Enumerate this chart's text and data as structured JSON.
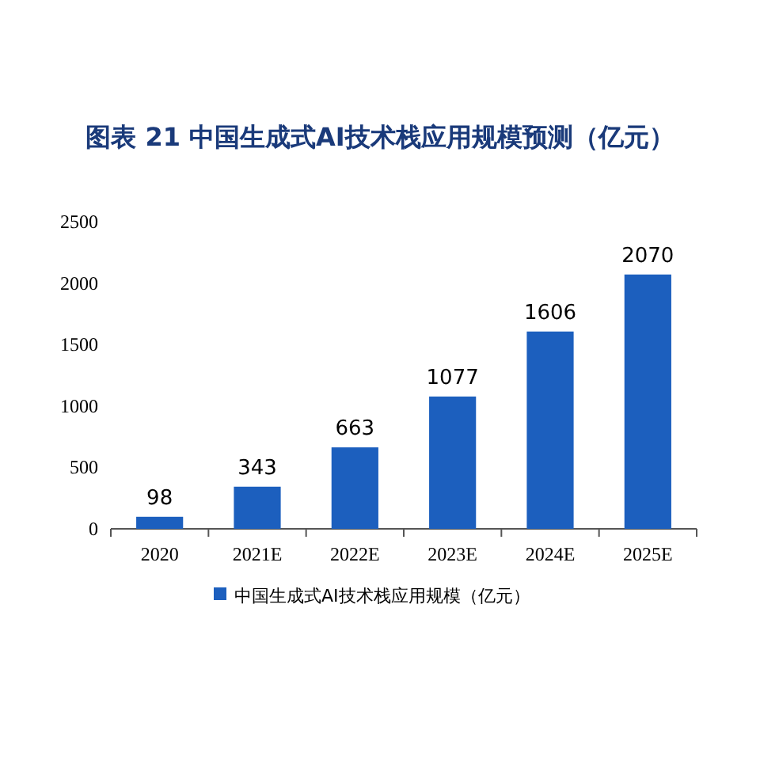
{
  "chart_data": {
    "type": "bar",
    "title": "图表 21   中国生成式AI技术栈应用规模预测（亿元）",
    "categories": [
      "2020",
      "2021E",
      "2022E",
      "2023E",
      "2024E",
      "2025E"
    ],
    "series": [
      {
        "name": "中国生成式AI技术栈应用规模（亿元）",
        "color": "#1c5fbe",
        "values": [
          98,
          343,
          663,
          1077,
          1606,
          2070
        ]
      }
    ],
    "ylim": [
      0,
      2500
    ],
    "yticks": [
      0,
      500,
      1000,
      1500,
      2000,
      2500
    ],
    "data_labels": true,
    "legend": "bottom"
  }
}
